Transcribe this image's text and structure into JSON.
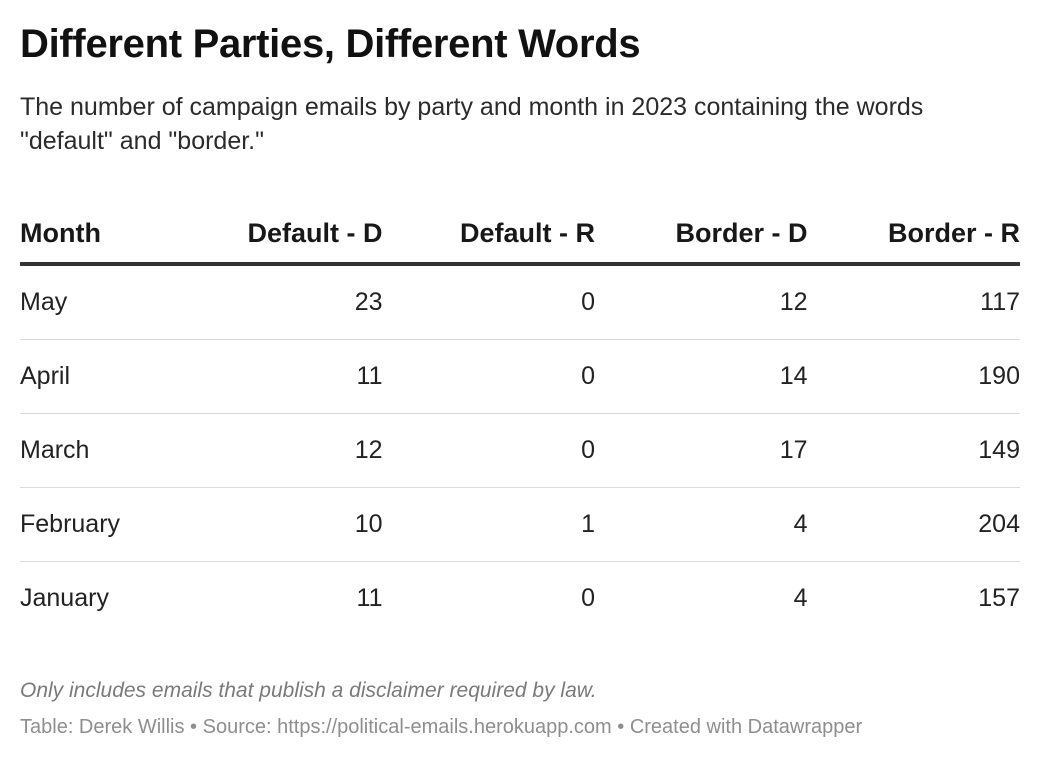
{
  "title": "Different Parties, Different Words",
  "subtitle": "The number of campaign emails by party and month in 2023 containing the words \"default\" and \"border.\"",
  "notes": "Only includes emails that publish a disclaimer required by law.",
  "footer": {
    "byline": "Table: Derek Willis",
    "sep1": " • ",
    "source": "Source: https://political-emails.herokuapp.com",
    "sep2": " • ",
    "created": "Created with Datawrapper"
  },
  "colors": {
    "header_rule": "#333333",
    "row_rule": "#dcdcdc",
    "notes": "#7a7a7a",
    "footer": "#8e8e8e"
  },
  "chart_data": {
    "type": "table",
    "columns": [
      "Month",
      "Default - D",
      "Default - R",
      "Border - D",
      "Border - R"
    ],
    "rows": [
      [
        "May",
        "23",
        "0",
        "12",
        "117"
      ],
      [
        "April",
        "11",
        "0",
        "14",
        "190"
      ],
      [
        "March",
        "12",
        "0",
        "17",
        "149"
      ],
      [
        "February",
        "10",
        "1",
        "4",
        "204"
      ],
      [
        "January",
        "11",
        "0",
        "4",
        "157"
      ]
    ]
  }
}
